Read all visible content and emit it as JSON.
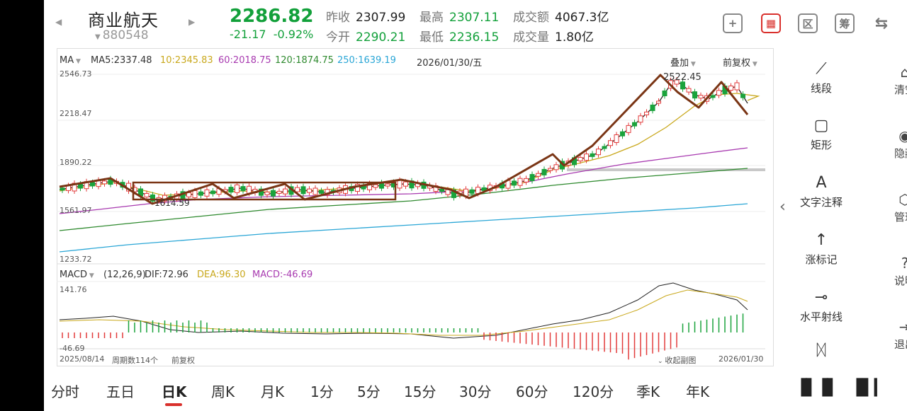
{
  "header": {
    "stock_name": "商业航天",
    "stock_code": "880548",
    "price": "2286.82",
    "change": "-21.17",
    "change_pct": "-0.92%",
    "quotes": [
      {
        "label": "昨收",
        "value": "2307.99",
        "color": "normal"
      },
      {
        "label": "最高",
        "value": "2307.11",
        "color": "green"
      },
      {
        "label": "成交额",
        "value": "4067.3亿",
        "color": "normal"
      },
      {
        "label": "今开",
        "value": "2290.21",
        "color": "green"
      },
      {
        "label": "最低",
        "value": "2236.15",
        "color": "green"
      },
      {
        "label": "成交量",
        "value": "1.80亿",
        "color": "normal"
      }
    ],
    "icons": [
      "plus-icon",
      "chart-mode-icon",
      "zone-icon",
      "chip-icon",
      "device-switch-icon"
    ],
    "icon_glyphs": [
      "+",
      "▦",
      "区",
      "筹",
      "⇆"
    ]
  },
  "legend": {
    "ma_selector": "MA",
    "ma5": "MA5:2337.48",
    "ma10": "10:2345.83",
    "ma60": "60:2018.75",
    "ma120": "120:1874.75",
    "ma250": "250:1639.19",
    "date": "2026/01/30/五",
    "overlay": "叠加",
    "adjust": "前复权"
  },
  "colors": {
    "up": "#e23b3b",
    "down": "#1aa33c",
    "ma5": "#222222",
    "ma10": "#c9a81c",
    "ma60": "#a83ab0",
    "ma120": "#2f8a2f",
    "ma250": "#2aa6d6",
    "trend": "#7a3515"
  },
  "y_axis": [
    "2546.73",
    "2218.47",
    "1890.22",
    "1561.97",
    "1233.72"
  ],
  "annotations": {
    "high": "2522.45",
    "low": "1614.59"
  },
  "macd": {
    "selector": "MACD",
    "params": "(12,26,9)",
    "dif": "DIF:72.96",
    "dea": "DEA:96.30",
    "macd": "MACD:-46.69",
    "top": "141.76",
    "bottom": "-46.69"
  },
  "footer": {
    "start_date": "2025/08/14",
    "period_count": "周期数114个",
    "adjust": "前复权",
    "collapse": "收起副图",
    "end_date": "2026/01/30"
  },
  "tools": [
    {
      "icon": "line-segment-icon",
      "glyph": "⟋",
      "label": "线段"
    },
    {
      "icon": "rectangle-icon",
      "glyph": "▢",
      "label": "矩形"
    },
    {
      "icon": "text-icon",
      "glyph": "A",
      "label": "文字注释"
    },
    {
      "icon": "arrow-up-icon",
      "glyph": "↑",
      "label": "涨标记"
    },
    {
      "icon": "horizontal-ray-icon",
      "glyph": "⊸",
      "label": "水平射线"
    }
  ],
  "side_tools": [
    {
      "icon": "clear-icon",
      "glyph": "⌂",
      "label": "清空"
    },
    {
      "icon": "eye-icon",
      "glyph": "◉",
      "label": "隐藏"
    },
    {
      "icon": "manage-icon",
      "glyph": "⬡",
      "label": "管理"
    },
    {
      "icon": "help-icon",
      "glyph": "?",
      "label": "说明"
    },
    {
      "icon": "exit-icon",
      "glyph": "⇥",
      "label": "退出"
    }
  ],
  "tabs": [
    "分时",
    "五日",
    "日K",
    "周K",
    "月K",
    "1分",
    "5分",
    "15分",
    "30分",
    "60分",
    "120分",
    "季K",
    "年K"
  ],
  "active_tab": "日K"
}
